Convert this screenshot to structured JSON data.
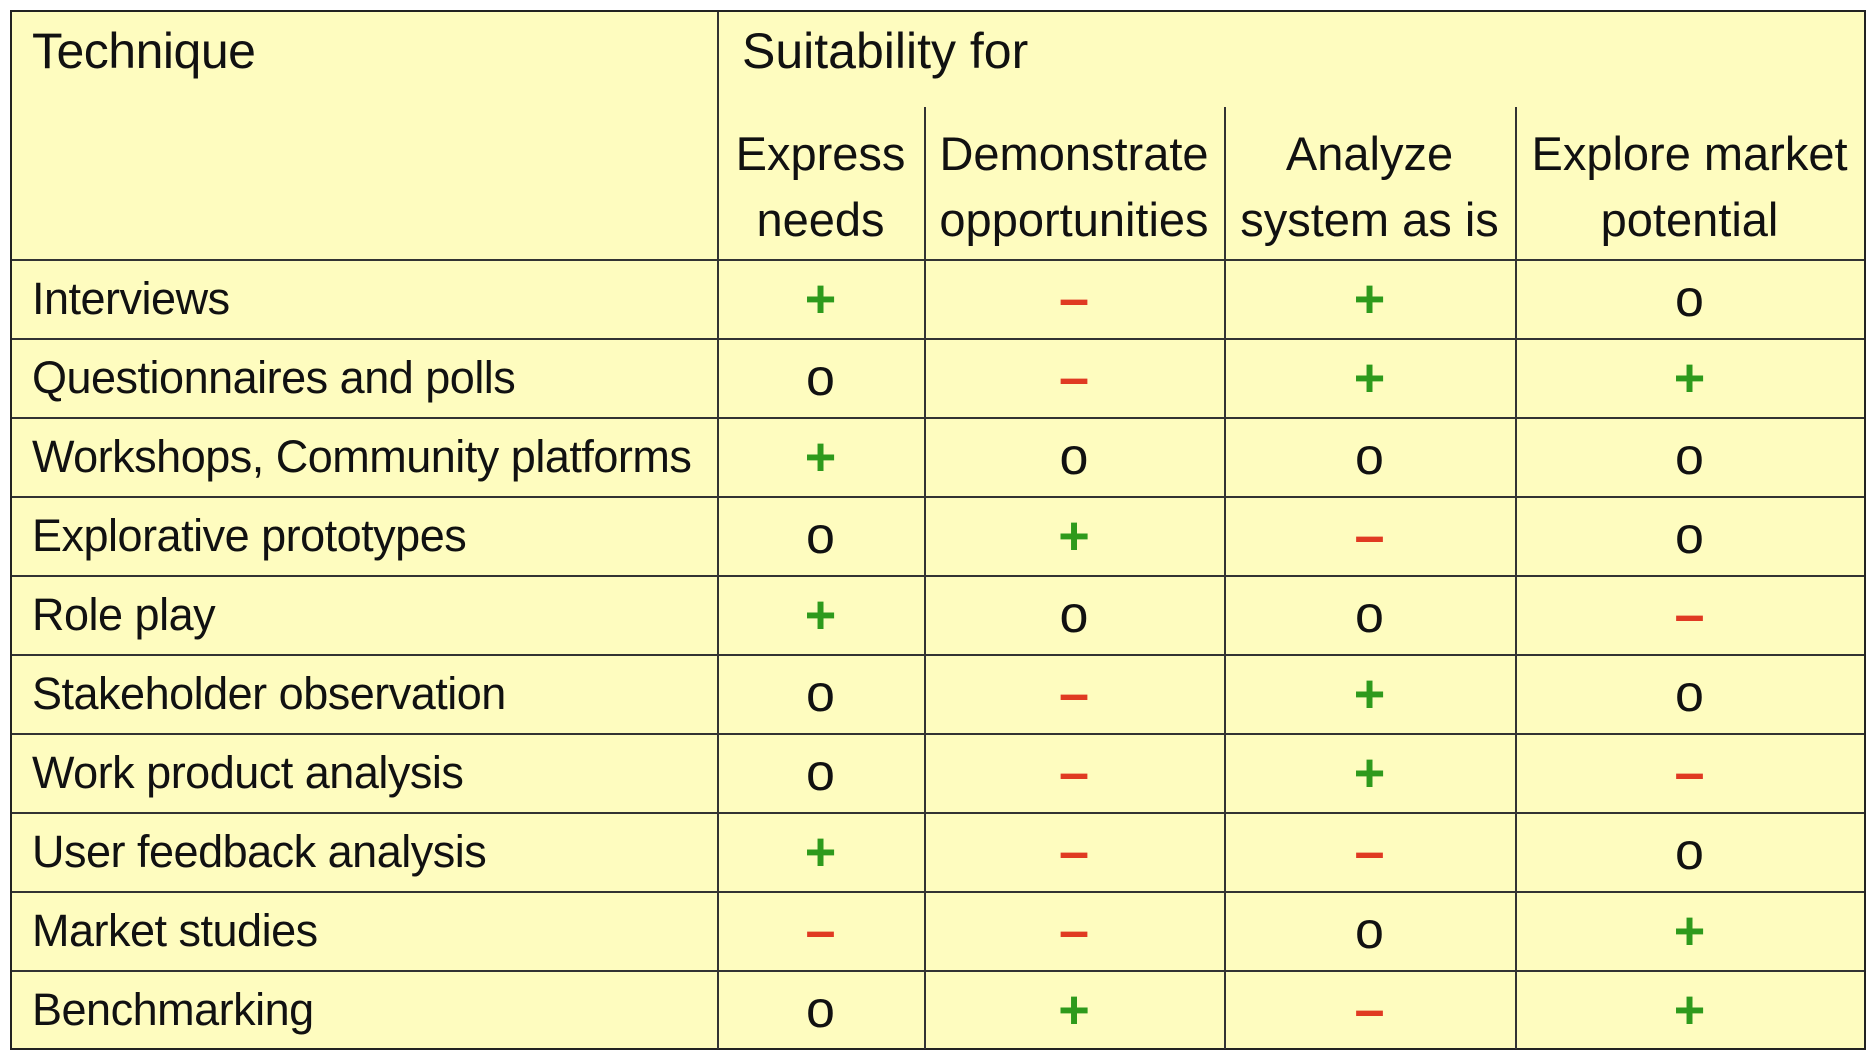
{
  "table": {
    "technique_header": "Technique",
    "suitability_header": "Suitability for",
    "columns": [
      "Express needs",
      "Demonstrate opportunities",
      "Analyze system as is",
      "Explore market potential"
    ],
    "rows": [
      {
        "technique": "Interviews",
        "ratings": [
          "+",
          "–",
          "+",
          "o"
        ]
      },
      {
        "technique": "Questionnaires and polls",
        "ratings": [
          "o",
          "–",
          "+",
          "+"
        ]
      },
      {
        "technique": "Workshops, Community platforms",
        "ratings": [
          "+",
          "o",
          "o",
          "o"
        ]
      },
      {
        "technique": "Explorative prototypes",
        "ratings": [
          "o",
          "+",
          "–",
          "o"
        ]
      },
      {
        "technique": "Role play",
        "ratings": [
          "+",
          "o",
          "o",
          "–"
        ]
      },
      {
        "technique": "Stakeholder observation",
        "ratings": [
          "o",
          "–",
          "+",
          "o"
        ]
      },
      {
        "technique": "Work product analysis",
        "ratings": [
          "o",
          "–",
          "+",
          "–"
        ]
      },
      {
        "technique": "User feedback analysis",
        "ratings": [
          "+",
          "–",
          "–",
          "o"
        ]
      },
      {
        "technique": "Market studies",
        "ratings": [
          "–",
          "–",
          "o",
          "+"
        ]
      },
      {
        "technique": "Benchmarking",
        "ratings": [
          "o",
          "+",
          "–",
          "+"
        ]
      }
    ]
  },
  "colors": {
    "background": "#fefcbf",
    "plus": "#2e9a1c",
    "minus": "#e03a22",
    "neutral": "#111111"
  }
}
